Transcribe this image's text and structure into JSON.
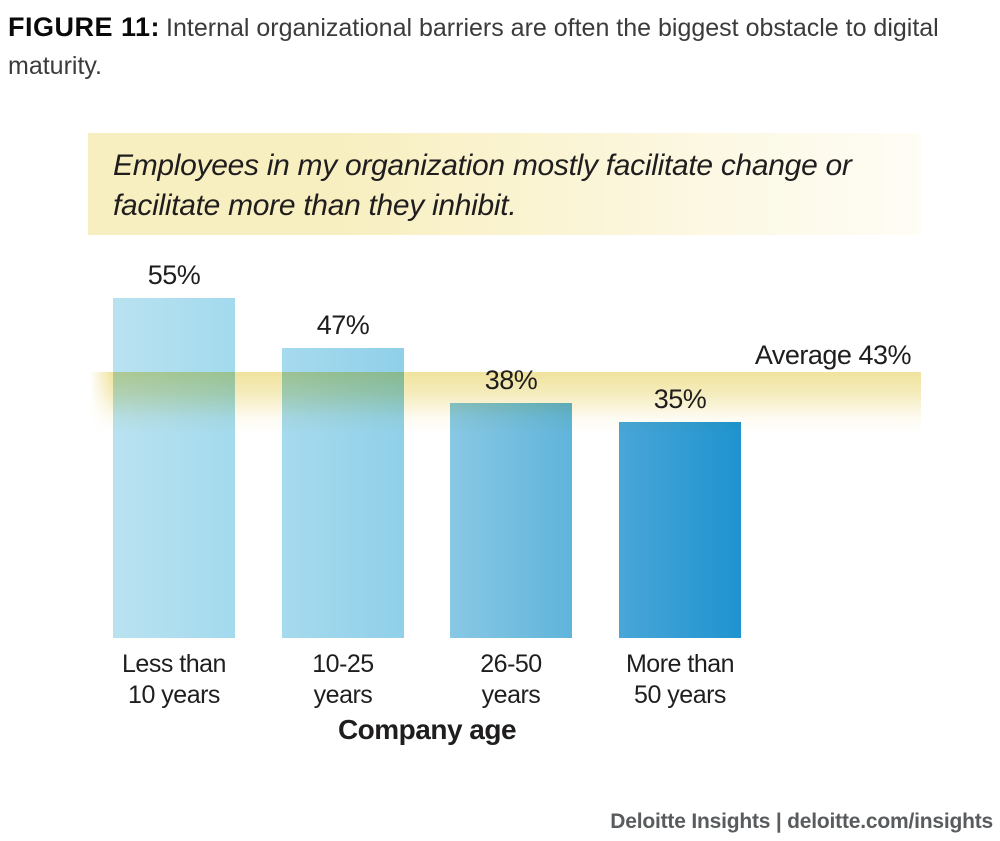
{
  "figure": {
    "label": "FIGURE 11:",
    "title": "Internal organizational barriers are often the biggest obstacle to digital maturity."
  },
  "question": {
    "text": "Employees in my organization mostly facilitate change or facilitate more than they inhibit."
  },
  "chart_data": {
    "type": "bar",
    "title": "Employees in my organization mostly facilitate change or facilitate more than they inhibit.",
    "categories": [
      "Less than 10 years",
      "10-25 years",
      "26-50 years",
      "More than 50 years"
    ],
    "category_lines": [
      [
        "Less than",
        "10 years"
      ],
      [
        "10-25",
        "years"
      ],
      [
        "26-50",
        "years"
      ],
      [
        "More than",
        "50 years"
      ]
    ],
    "values": [
      55,
      47,
      38,
      35
    ],
    "value_labels": [
      "55%",
      "47%",
      "38%",
      "35%"
    ],
    "average": 43,
    "average_label": "Average 43%",
    "xlabel": "Company age",
    "ylabel": "",
    "ylim": [
      0,
      65
    ],
    "grid": false,
    "legend": "none",
    "bar_gradients": [
      [
        "#b9e2f0",
        "#a3daee"
      ],
      [
        "#a6daee",
        "#90d0e9"
      ],
      [
        "#88c8e4",
        "#60b4db"
      ],
      [
        "#49a6d8",
        "#1f93cf"
      ]
    ],
    "average_band_colors": [
      "#f0e39c",
      "#f5ecbd",
      "#fdfbf2",
      "#ffffff"
    ],
    "question_box_colors": [
      "#f8efc0",
      "#fefdf6"
    ]
  },
  "footer": {
    "text": "Deloitte Insights | deloitte.com/insights"
  }
}
